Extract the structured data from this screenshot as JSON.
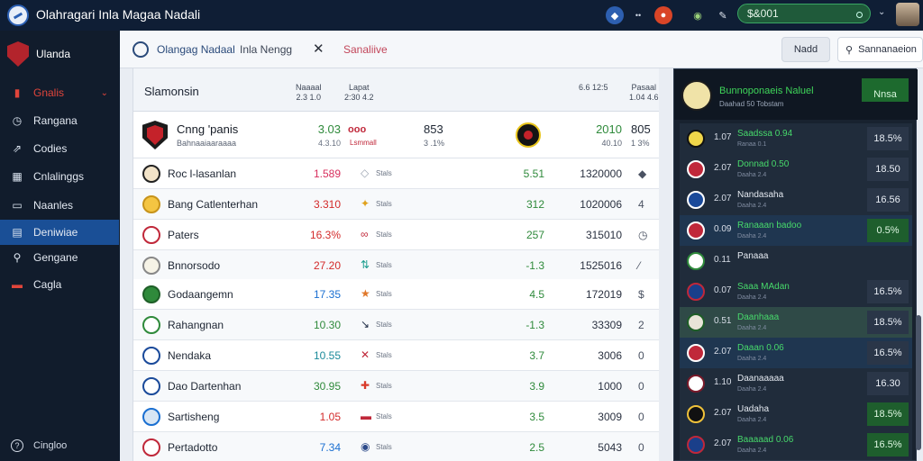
{
  "app": {
    "title": "Olahragari Inla Magaa Nadali"
  },
  "topbar": {
    "icons": [
      "shield-icon",
      "more-icon",
      "alert-icon",
      "settings-icon",
      "bolt-icon"
    ],
    "search_value": "$&001",
    "chevron": "⌄",
    "more_glyph": "••"
  },
  "sidebar": {
    "brand_label": "Ulanda",
    "items": [
      {
        "label": "Gnalis",
        "icon": "chart-icon",
        "tail": "⌄"
      },
      {
        "label": "Rangana",
        "icon": "clock-icon"
      },
      {
        "label": "Codies",
        "icon": "share-icon"
      },
      {
        "label": "Cnlalinggs",
        "icon": "calendar-icon"
      },
      {
        "label": "Naanles",
        "icon": "tv-icon"
      },
      {
        "label": "Deniwiae",
        "icon": "grid-icon"
      },
      {
        "label": "Gengane",
        "icon": "link-icon"
      },
      {
        "label": "Cagla",
        "icon": "cards-icon"
      }
    ],
    "footer_label": "Cingloo"
  },
  "tabs": {
    "tab1": "Olangag Nadaal",
    "tab2": "Inla Nengg",
    "close_glyph": "✕",
    "tab3": "Sanaliive",
    "mini_button": "Nadd",
    "search_placeholder": "Sannanaeion"
  },
  "table": {
    "title": "Slamonsin",
    "columns": [
      {
        "l1": "Naaaal",
        "l2": "2.3 1.0"
      },
      {
        "l1": "Lapat",
        "l2": "2:30 4.2"
      },
      {
        "l1": "",
        "l2": "6.6 12:5"
      },
      {
        "l1": "Pasaal",
        "l2": "1.04 4.6"
      }
    ],
    "featured": {
      "name": "Cnng 'panis",
      "sub": "Bahnaaiaaraaaa",
      "v1": "3.03",
      "v1b": "4.3.10",
      "mk": "ooo",
      "mk2": "Lsmmall",
      "mid": "853",
      "midb": "3 .1%",
      "v2": "2010",
      "v2b": "40.10",
      "v3": "805",
      "v3b": "1 3%"
    },
    "rows": [
      {
        "name": "Roc l-lasanlan",
        "v1": "1.589",
        "c1": "#d8305e",
        "mk": "◇",
        "mcol": "#9aa3b0",
        "lbl": "Stals",
        "v2": "5.51",
        "v3": "1320000",
        "v4": "◆"
      },
      {
        "name": "Bang Catlenterhan",
        "v1": "3.310",
        "c1": "#d32a2a",
        "mk": "✦",
        "mcol": "#e0a21c",
        "lbl": "Stals",
        "v2": "312",
        "v3": "1020006",
        "v4": "4"
      },
      {
        "name": "Paters",
        "v1": "16.3%",
        "c1": "#d32a2a",
        "mk": "∞",
        "mcol": "#c0283a",
        "lbl": "Stals",
        "v2": "257",
        "v3": "315010",
        "v4": "◷"
      },
      {
        "name": "Bnnorsodo",
        "v1": "27.20",
        "c1": "#d32a2a",
        "mk": "⇅",
        "mcol": "#1e9e8f",
        "lbl": "Stals",
        "v2": "-1.3",
        "v3": "1525016",
        "v4": "⁄"
      },
      {
        "name": "Godaangemn",
        "v1": "17.35",
        "c1": "#1a6fd1",
        "mk": "★",
        "mcol": "#e0782a",
        "lbl": "Stals",
        "v2": "4.5",
        "v3": "172019",
        "v4": "$"
      },
      {
        "name": "Rahangnan",
        "v1": "10.30",
        "c1": "#2f8a3b",
        "mk": "↘",
        "mcol": "#1d2a44",
        "lbl": "Stals",
        "v2": "-1.3",
        "v3": "33309",
        "v4": "2"
      },
      {
        "name": "Nendaka",
        "v1": "10.55",
        "c1": "#1b8a9a",
        "mk": "✕",
        "mcol": "#c0283a",
        "lbl": "Stals",
        "v2": "3.7",
        "v3": "3006",
        "v4": "0"
      },
      {
        "name": "Dao Dartenhan",
        "v1": "30.95",
        "c1": "#2f8a3b",
        "mk": "✚",
        "mcol": "#d93a2a",
        "lbl": "Stals",
        "v2": "3.9",
        "v3": "1000",
        "v4": "0"
      },
      {
        "name": "Sartisheng",
        "v1": "1.05",
        "c1": "#d32a2a",
        "mk": "▬",
        "mcol": "#c0283a",
        "lbl": "Stals",
        "v2": "3.5",
        "v3": "3009",
        "v4": "0"
      },
      {
        "name": "Pertadotto",
        "v1": "7.34",
        "c1": "#1a6fd1",
        "mk": "◉",
        "mcol": "#2c4a8a",
        "lbl": "Stals",
        "v2": "2.5",
        "v3": "5043",
        "v4": "0"
      }
    ]
  },
  "right_panel": {
    "title": "Bunnoponaeis Naluel",
    "sub": "Daahad 50 Tobstam",
    "badge": "Nnsa",
    "rows": [
      {
        "num": "1.07",
        "name": "Saadssa 0.94",
        "sub": "Ranaa 0.1",
        "val": "18.5%",
        "green": false
      },
      {
        "num": "2.07",
        "name": "Donnad 0.50",
        "sub": "Daaha 2.4",
        "val": "18.50",
        "green": false
      },
      {
        "num": "2.07",
        "name": "Nandasaha",
        "sub": "Daaha 2.4",
        "val": "16.56",
        "green": false
      },
      {
        "num": "0.09",
        "name": "Ranaaan badoo",
        "sub": "Daaha 2.4",
        "val": "0.5%",
        "green": false
      },
      {
        "num": "0.11",
        "name": "Panaaa",
        "sub": "",
        "val": "",
        "green": false
      },
      {
        "num": "0.07",
        "name": "Saaa MAdan",
        "sub": "Daaha 2.4",
        "val": "16.5%",
        "green": false
      },
      {
        "num": "0.51",
        "name": "Daanhaaa",
        "sub": "Daaha 2.4",
        "val": "18.5%",
        "green": false
      },
      {
        "num": "2.07",
        "name": "Daaan 0.06",
        "sub": "Daaha 2.4",
        "val": "16.5%",
        "green": false
      },
      {
        "num": "1.10",
        "name": "Daanaaaaa",
        "sub": "Daaha 2.4",
        "val": "16.30",
        "green": false
      },
      {
        "num": "2.07",
        "name": "Uadaha",
        "sub": "Daaha 2.4",
        "val": "18.5%",
        "green": true
      },
      {
        "num": "2.07",
        "name": "Baaaaad 0.06",
        "sub": "Daaha 2.4",
        "val": "16.5%",
        "green": true
      }
    ]
  }
}
